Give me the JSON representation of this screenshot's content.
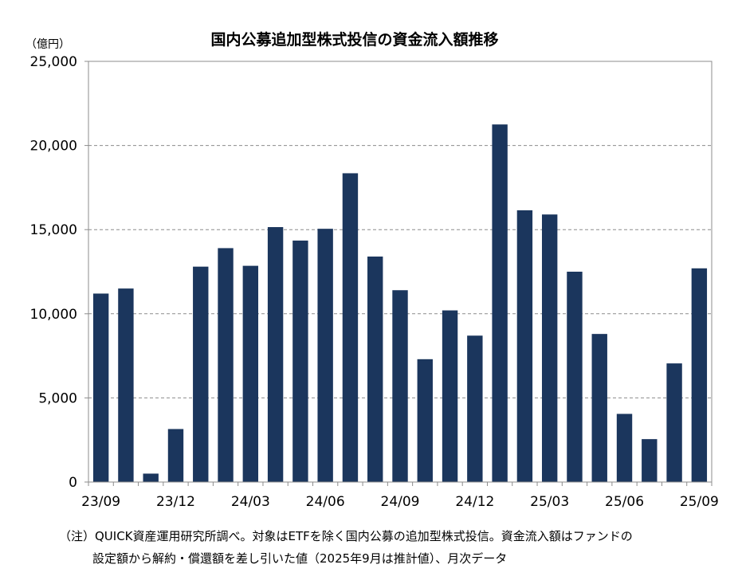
{
  "chart_data": {
    "type": "bar",
    "title": "国内公募追加型株式投信の資金流入額推移",
    "ylabel": "（億円）",
    "xlabel": "",
    "ylim": [
      0,
      25000
    ],
    "yticks": [
      0,
      5000,
      10000,
      15000,
      20000,
      25000
    ],
    "ytick_labels": [
      "0",
      "5,000",
      "10,000",
      "15,000",
      "20,000",
      "25,000"
    ],
    "grid": "horizontal dashed",
    "bar_color": "#1b365d",
    "categories": [
      "23/09",
      "23/10",
      "23/11",
      "23/12",
      "24/01",
      "24/02",
      "24/03",
      "24/04",
      "24/05",
      "24/06",
      "24/07",
      "24/08",
      "24/09",
      "24/10",
      "24/11",
      "24/12",
      "25/01",
      "25/02",
      "25/03",
      "25/04",
      "25/05",
      "25/06",
      "25/07",
      "25/08",
      "25/09"
    ],
    "xtick_labels": [
      "23/09",
      "23/12",
      "24/03",
      "24/06",
      "24/09",
      "24/12",
      "25/03",
      "25/06",
      "25/09"
    ],
    "values": [
      11200,
      11500,
      500,
      3150,
      12800,
      13900,
      12850,
      15150,
      14350,
      15050,
      18350,
      13400,
      11400,
      7300,
      10200,
      8700,
      21250,
      16150,
      15900,
      12500,
      8800,
      4050,
      2550,
      7050,
      12700
    ]
  },
  "notes": {
    "line1": "（注）QUICK資産運用研究所調べ。対象はETFを除く国内公募の追加型株式投信。資金流入額はファンドの",
    "line2": "設定額から解約・償還額を差し引いた値（2025年9月は推計値）、月次データ"
  }
}
